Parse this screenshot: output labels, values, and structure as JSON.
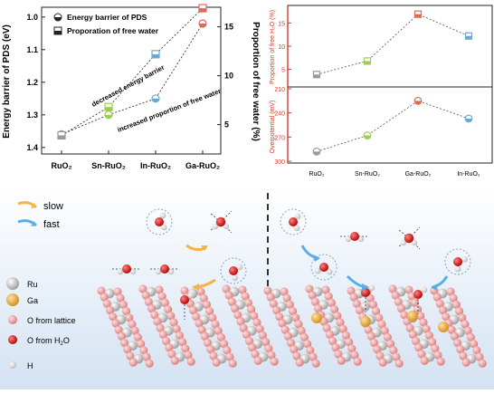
{
  "chart_data": [
    {
      "type": "line",
      "categories": [
        "RuO₂",
        "Sn-RuO₂",
        "In-RuO₂",
        "Ga-RuO₂"
      ],
      "ylabel_left": "Energy barrier of PDS (eV)",
      "ylabel_right": "Proportion of free water (%)",
      "ylim_left": [
        1.42,
        0.97
      ],
      "yticks_left": [
        "1.0",
        "1.1",
        "1.2",
        "1.3",
        "1.4"
      ],
      "ylim_right": [
        2,
        17
      ],
      "yticks_right": [
        "5",
        "10",
        "15"
      ],
      "legend": "top-left",
      "series": [
        {
          "name": "Energy barrier of PDS",
          "axis": "left",
          "marker": "circle-half",
          "color": "#222222",
          "values": [
            1.36,
            1.3,
            1.25,
            1.02
          ],
          "point_colors": [
            "#9a9a9a",
            "#9ccd52",
            "#6aa9d6",
            "#e06a5a"
          ]
        },
        {
          "name": "Proporation of free water",
          "axis": "right",
          "marker": "square-half",
          "color": "#222222",
          "values": [
            3.9,
            6.8,
            12.2,
            16.9
          ],
          "point_colors": [
            "#9a9a9a",
            "#9ccd52",
            "#6aa9d6",
            "#e06a5a"
          ]
        }
      ],
      "annotations": [
        "decreased energy barrier",
        "increased proportion of free water"
      ]
    },
    {
      "type": "line",
      "categories": [
        "RuO₂",
        "Sn-RuO₂",
        "Ga-RuO₂",
        "In-RuO₂"
      ],
      "top": {
        "ylabel": "Proportion of free H₂O (%)",
        "ylim": [
          2,
          18
        ],
        "yticks": [
          "5",
          "10",
          "15"
        ],
        "values": [
          3.9,
          6.8,
          16.9,
          12.2
        ]
      },
      "bottom": {
        "ylabel": "Overpotential (mV)",
        "ylim": [
          300,
          210
        ],
        "yticks": [
          "210",
          "240",
          "270",
          "300"
        ],
        "values": [
          288,
          268,
          225,
          247
        ]
      },
      "point_colors": [
        "#9a9a9a",
        "#9ccd52",
        "#e06a5a",
        "#6aa9d6"
      ],
      "axis_color": "#d33b2c"
    }
  ],
  "legend_scheme": {
    "slow": "slow",
    "fast": "fast",
    "ru": "Ru",
    "ga": "Ga",
    "o_lattice": "O from lattice",
    "o_h2o": "O from H",
    "o_h2o_sub": "2",
    "o_h2o_tail": "O",
    "h": "H"
  },
  "colors": {
    "ru": "#c8c8c8",
    "ga": "#e8a83a",
    "o_lattice": "#f0a8a8",
    "o_h2o": "#e01818",
    "slow_arrow": "#f3b545",
    "fast_arrow": "#5aaee8",
    "bg_top": "#ffffff",
    "bg_bottom": "#dbe6f3"
  }
}
